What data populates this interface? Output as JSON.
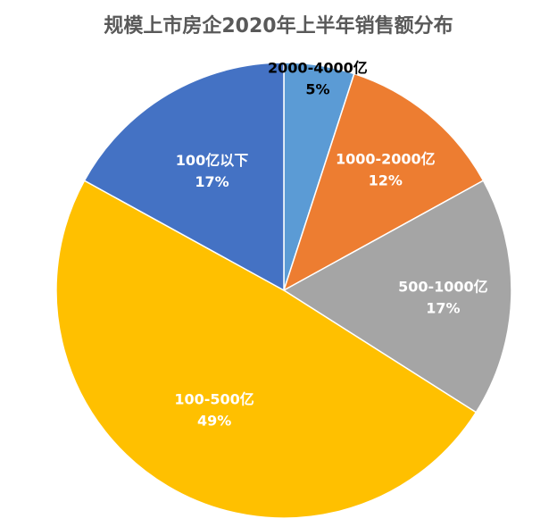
{
  "chart_data": {
    "type": "pie",
    "title": "规模上市房企2020年上半年销售额分布",
    "slices": [
      {
        "label": "2000-4000亿",
        "value": 5,
        "value_label": "5%",
        "color": "#5B9BD5",
        "label_color": "#000000"
      },
      {
        "label": "1000-2000亿",
        "value": 12,
        "value_label": "12%",
        "color": "#ED7D31",
        "label_color": "#ffffff"
      },
      {
        "label": "500-1000亿",
        "value": 17,
        "value_label": "17%",
        "color": "#A5A5A5",
        "label_color": "#ffffff"
      },
      {
        "label": "100-500亿",
        "value": 49,
        "value_label": "49%",
        "color": "#FFC000",
        "label_color": "#ffffff"
      },
      {
        "label": "100亿以下",
        "value": 17,
        "value_label": "17%",
        "color": "#4472C4",
        "label_color": "#ffffff"
      }
    ],
    "start": "12 o'clock",
    "direction": "clockwise",
    "legend": "none"
  }
}
